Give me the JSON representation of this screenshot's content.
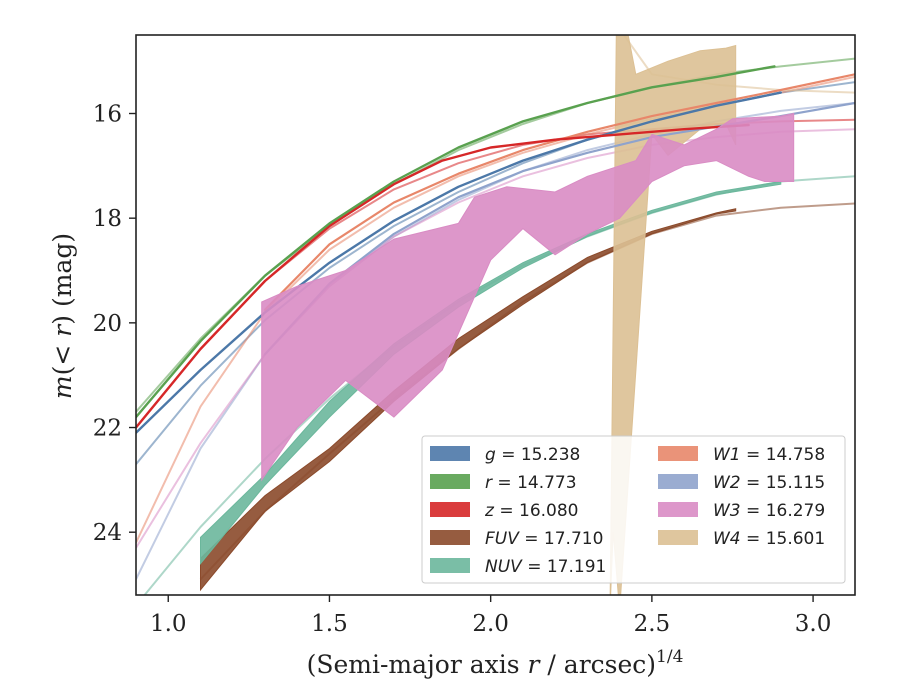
{
  "chart_data": {
    "type": "line",
    "xlabel": "(Semi-major axis r / arcsec)",
    "xlabel_parts": {
      "pre": "(Semi-major axis ",
      "var": "r",
      "post": " / arcsec)",
      "sup": "1/4"
    },
    "ylabel_parts": {
      "m": "m",
      "open": "(",
      "lt": "< ",
      "r": "r",
      "close": ") (mag)"
    },
    "xlim": [
      0.9,
      3.13
    ],
    "ylim": [
      25.2,
      14.5
    ],
    "y_inverted": true,
    "x_ticks": [
      1.0,
      1.5,
      2.0,
      2.5,
      3.0
    ],
    "x_tick_labels": [
      "1.0",
      "1.5",
      "2.0",
      "2.5",
      "3.0"
    ],
    "y_ticks": [
      16,
      18,
      20,
      22,
      24
    ],
    "y_tick_labels": [
      "16",
      "18",
      "20",
      "22",
      "24"
    ],
    "grid": false,
    "legend_position": "lower-right",
    "series": [
      {
        "band": "g",
        "value": "15.238",
        "color": "#4c78a8",
        "kind": "line",
        "lw": 2.4,
        "fit": [
          [
            0.9,
            22.7
          ],
          [
            1.1,
            21.2
          ],
          [
            1.3,
            19.95
          ],
          [
            1.5,
            18.95
          ],
          [
            1.7,
            18.15
          ],
          [
            1.9,
            17.5
          ],
          [
            2.1,
            16.95
          ],
          [
            2.3,
            16.5
          ],
          [
            2.5,
            16.15
          ],
          [
            2.7,
            15.85
          ],
          [
            2.9,
            15.6
          ],
          [
            3.13,
            15.4
          ]
        ],
        "data": [
          [
            0.9,
            22.1
          ],
          [
            1.1,
            20.9
          ],
          [
            1.3,
            19.8
          ],
          [
            1.5,
            18.85
          ],
          [
            1.7,
            18.05
          ],
          [
            1.9,
            17.4
          ],
          [
            2.1,
            16.9
          ],
          [
            2.3,
            16.5
          ],
          [
            2.5,
            16.15
          ],
          [
            2.7,
            15.85
          ],
          [
            2.9,
            15.6
          ]
        ]
      },
      {
        "band": "r",
        "value": "14.773",
        "color": "#59a14f",
        "kind": "line",
        "lw": 2.4,
        "fit": [
          [
            0.9,
            21.7
          ],
          [
            1.1,
            20.3
          ],
          [
            1.3,
            19.1
          ],
          [
            1.5,
            18.15
          ],
          [
            1.7,
            17.35
          ],
          [
            1.9,
            16.7
          ],
          [
            2.1,
            16.2
          ],
          [
            2.3,
            15.8
          ],
          [
            2.5,
            15.5
          ],
          [
            2.7,
            15.25
          ],
          [
            2.9,
            15.1
          ],
          [
            3.13,
            14.95
          ]
        ],
        "data": [
          [
            0.9,
            21.8
          ],
          [
            1.1,
            20.35
          ],
          [
            1.3,
            19.1
          ],
          [
            1.5,
            18.1
          ],
          [
            1.7,
            17.3
          ],
          [
            1.9,
            16.65
          ],
          [
            2.1,
            16.15
          ],
          [
            2.3,
            15.8
          ],
          [
            2.5,
            15.5
          ],
          [
            2.7,
            15.3
          ],
          [
            2.88,
            15.1
          ]
        ]
      },
      {
        "band": "z",
        "value": "16.080",
        "color": "#d62728",
        "kind": "line",
        "lw": 2.4,
        "fit": [
          [
            0.9,
            22.0
          ],
          [
            1.1,
            20.5
          ],
          [
            1.3,
            19.2
          ],
          [
            1.5,
            18.2
          ],
          [
            1.7,
            17.45
          ],
          [
            1.9,
            16.95
          ],
          [
            2.1,
            16.6
          ],
          [
            2.3,
            16.4
          ],
          [
            2.5,
            16.3
          ],
          [
            2.7,
            16.2
          ],
          [
            2.9,
            16.15
          ],
          [
            3.13,
            16.12
          ]
        ],
        "data": [
          [
            0.9,
            22.0
          ],
          [
            1.1,
            20.5
          ],
          [
            1.3,
            19.2
          ],
          [
            1.5,
            18.15
          ],
          [
            1.7,
            17.35
          ],
          [
            1.85,
            16.9
          ],
          [
            2.0,
            16.65
          ],
          [
            2.2,
            16.5
          ],
          [
            2.4,
            16.4
          ],
          [
            2.6,
            16.3
          ],
          [
            2.8,
            16.22
          ]
        ]
      },
      {
        "band": "FUV",
        "value": "17.710",
        "color": "#8b4a2b",
        "kind": "band",
        "fit": [
          [
            1.1,
            24.9
          ],
          [
            1.3,
            23.6
          ],
          [
            1.5,
            22.5
          ],
          [
            1.7,
            21.45
          ],
          [
            1.9,
            20.5
          ],
          [
            2.1,
            19.6
          ],
          [
            2.3,
            18.85
          ],
          [
            2.5,
            18.3
          ],
          [
            2.7,
            17.95
          ],
          [
            2.9,
            17.8
          ],
          [
            3.13,
            17.72
          ]
        ],
        "upper": [
          [
            1.1,
            24.5
          ],
          [
            1.3,
            23.3
          ],
          [
            1.5,
            22.4
          ],
          [
            1.7,
            21.3
          ],
          [
            1.9,
            20.3
          ],
          [
            2.1,
            19.5
          ],
          [
            2.3,
            18.75
          ],
          [
            2.5,
            18.25
          ],
          [
            2.7,
            17.9
          ],
          [
            2.76,
            17.82
          ]
        ],
        "lower": [
          [
            1.1,
            25.1
          ],
          [
            1.3,
            23.6
          ],
          [
            1.5,
            22.65
          ],
          [
            1.7,
            21.5
          ],
          [
            1.9,
            20.5
          ],
          [
            2.1,
            19.65
          ],
          [
            2.3,
            18.85
          ],
          [
            2.5,
            18.3
          ],
          [
            2.7,
            17.92
          ],
          [
            2.76,
            17.86
          ]
        ]
      },
      {
        "band": "NUV",
        "value": "17.191",
        "color": "#6bb79c",
        "kind": "band",
        "fit": [
          [
            0.9,
            25.4
          ],
          [
            1.1,
            23.9
          ],
          [
            1.3,
            22.6
          ],
          [
            1.5,
            21.45
          ],
          [
            1.7,
            20.45
          ],
          [
            1.9,
            19.6
          ],
          [
            2.1,
            18.9
          ],
          [
            2.3,
            18.35
          ],
          [
            2.5,
            17.9
          ],
          [
            2.7,
            17.55
          ],
          [
            2.9,
            17.3
          ],
          [
            3.13,
            17.2
          ]
        ],
        "upper": [
          [
            1.1,
            24.1
          ],
          [
            1.3,
            22.9
          ],
          [
            1.5,
            21.5
          ],
          [
            1.7,
            20.4
          ],
          [
            1.9,
            19.55
          ],
          [
            2.1,
            18.85
          ],
          [
            2.3,
            18.3
          ],
          [
            2.5,
            17.85
          ],
          [
            2.7,
            17.5
          ],
          [
            2.9,
            17.3
          ]
        ],
        "lower": [
          [
            1.1,
            24.6
          ],
          [
            1.3,
            23.1
          ],
          [
            1.5,
            21.8
          ],
          [
            1.7,
            20.6
          ],
          [
            1.9,
            19.7
          ],
          [
            2.1,
            18.95
          ],
          [
            2.3,
            18.35
          ],
          [
            2.5,
            17.9
          ],
          [
            2.7,
            17.55
          ],
          [
            2.9,
            17.35
          ]
        ]
      },
      {
        "band": "W1",
        "value": "14.758",
        "color": "#e8876a",
        "kind": "line",
        "lw": 2.2,
        "fit": [
          [
            0.9,
            24.2
          ],
          [
            1.1,
            21.6
          ],
          [
            1.3,
            19.8
          ],
          [
            1.5,
            18.6
          ],
          [
            1.7,
            17.8
          ],
          [
            1.9,
            17.2
          ],
          [
            2.1,
            16.75
          ],
          [
            2.3,
            16.4
          ],
          [
            2.5,
            16.1
          ],
          [
            2.7,
            15.85
          ],
          [
            2.9,
            15.6
          ],
          [
            3.13,
            15.3
          ]
        ],
        "data": [
          [
            1.3,
            19.75
          ],
          [
            1.5,
            18.5
          ],
          [
            1.7,
            17.7
          ],
          [
            1.9,
            17.15
          ],
          [
            2.1,
            16.7
          ],
          [
            2.3,
            16.35
          ],
          [
            2.5,
            16.05
          ],
          [
            2.7,
            15.8
          ],
          [
            2.9,
            15.55
          ],
          [
            3.13,
            15.25
          ]
        ]
      },
      {
        "band": "W2",
        "value": "15.115",
        "color": "#8fa3cc",
        "kind": "line",
        "lw": 2.2,
        "fit": [
          [
            0.9,
            24.9
          ],
          [
            1.1,
            22.4
          ],
          [
            1.3,
            20.6
          ],
          [
            1.5,
            19.3
          ],
          [
            1.7,
            18.35
          ],
          [
            1.9,
            17.65
          ],
          [
            2.1,
            17.1
          ],
          [
            2.3,
            16.7
          ],
          [
            2.5,
            16.4
          ],
          [
            2.7,
            16.15
          ],
          [
            2.9,
            15.95
          ],
          [
            3.13,
            15.8
          ]
        ],
        "data": [
          [
            1.3,
            20.6
          ],
          [
            1.5,
            19.25
          ],
          [
            1.7,
            18.3
          ],
          [
            1.9,
            17.6
          ],
          [
            2.1,
            17.1
          ],
          [
            2.3,
            16.75
          ],
          [
            2.5,
            16.45
          ],
          [
            2.7,
            16.25
          ],
          [
            2.9,
            16.05
          ],
          [
            3.13,
            15.8
          ]
        ]
      },
      {
        "band": "W3",
        "value": "16.279",
        "color": "#d98cc4",
        "kind": "band",
        "fit": [
          [
            0.9,
            24.3
          ],
          [
            1.1,
            22.3
          ],
          [
            1.3,
            20.6
          ],
          [
            1.5,
            19.3
          ],
          [
            1.7,
            18.35
          ],
          [
            1.9,
            17.7
          ],
          [
            2.1,
            17.2
          ],
          [
            2.3,
            16.85
          ],
          [
            2.5,
            16.6
          ],
          [
            2.7,
            16.45
          ],
          [
            2.9,
            16.35
          ],
          [
            3.13,
            16.3
          ]
        ],
        "upper": [
          [
            1.29,
            19.6
          ],
          [
            1.4,
            19.3
          ],
          [
            1.55,
            19.0
          ],
          [
            1.7,
            18.4
          ],
          [
            1.9,
            18.1
          ],
          [
            1.95,
            17.6
          ],
          [
            2.05,
            17.4
          ],
          [
            2.2,
            17.5
          ],
          [
            2.3,
            17.2
          ],
          [
            2.45,
            16.9
          ],
          [
            2.5,
            16.4
          ],
          [
            2.6,
            16.6
          ],
          [
            2.7,
            16.3
          ],
          [
            2.75,
            16.1
          ],
          [
            2.9,
            16.05
          ],
          [
            2.94,
            16.0
          ]
        ],
        "lower": [
          [
            1.29,
            23.0
          ],
          [
            1.4,
            22.0
          ],
          [
            1.55,
            21.1
          ],
          [
            1.7,
            21.8
          ],
          [
            1.85,
            20.9
          ],
          [
            2.0,
            18.8
          ],
          [
            2.1,
            18.2
          ],
          [
            2.2,
            18.7
          ],
          [
            2.3,
            18.3
          ],
          [
            2.4,
            18.0
          ],
          [
            2.5,
            17.3
          ],
          [
            2.6,
            17.0
          ],
          [
            2.7,
            16.9
          ],
          [
            2.8,
            17.2
          ],
          [
            2.85,
            17.3
          ],
          [
            2.94,
            17.3
          ]
        ]
      },
      {
        "band": "W4",
        "value": "15.601",
        "color": "#dcc094",
        "kind": "band",
        "fit": [
          [
            2.39,
            14.3
          ],
          [
            2.5,
            15.25
          ],
          [
            2.7,
            15.45
          ],
          [
            2.9,
            15.55
          ],
          [
            3.13,
            15.6
          ]
        ],
        "upper": [
          [
            2.39,
            14.3
          ],
          [
            2.42,
            14.3
          ],
          [
            2.45,
            15.25
          ],
          [
            2.55,
            15.0
          ],
          [
            2.65,
            14.8
          ],
          [
            2.73,
            14.75
          ],
          [
            2.76,
            14.7
          ]
        ],
        "lower": [
          [
            2.37,
            25.5
          ],
          [
            2.38,
            24.0
          ],
          [
            2.4,
            25.5
          ],
          [
            2.5,
            16.4
          ],
          [
            2.55,
            16.8
          ],
          [
            2.65,
            16.3
          ],
          [
            2.73,
            16.2
          ],
          [
            2.76,
            16.6
          ]
        ]
      }
    ]
  }
}
